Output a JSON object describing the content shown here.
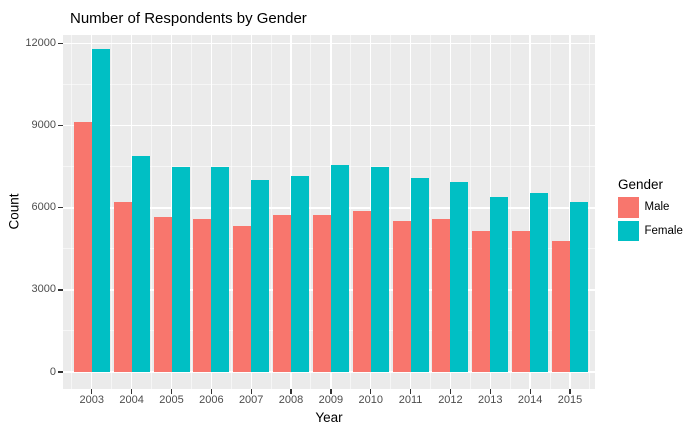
{
  "title": "Number of Respondents by Gender",
  "axes": {
    "x_title": "Year",
    "y_title": "Count",
    "y_tick_labels": [
      "0",
      "3000",
      "6000",
      "9000",
      "12000"
    ],
    "x_tick_labels": [
      "2003",
      "2004",
      "2005",
      "2006",
      "2007",
      "2008",
      "2009",
      "2010",
      "2011",
      "2012",
      "2013",
      "2014",
      "2015"
    ]
  },
  "legend": {
    "title": "Gender",
    "items": [
      {
        "label": "Male",
        "color": "#F8766D"
      },
      {
        "label": "Female",
        "color": "#00BFC4"
      }
    ]
  },
  "colors": {
    "panel_background": "#EBEBEB",
    "grid_major": "#FFFFFF",
    "axis_tick_text": "#4D4D4D",
    "tick_mark": "#333333",
    "male": "#F8766D",
    "female": "#00BFC4"
  },
  "chart_data": {
    "type": "bar",
    "title": "Number of Respondents by Gender",
    "xlabel": "Year",
    "ylabel": "Count",
    "categories": [
      "2003",
      "2004",
      "2005",
      "2006",
      "2007",
      "2008",
      "2009",
      "2010",
      "2011",
      "2012",
      "2013",
      "2014",
      "2015"
    ],
    "series": [
      {
        "name": "Male",
        "color": "#F8766D",
        "values": [
          9150,
          6200,
          5650,
          5580,
          5350,
          5720,
          5720,
          5870,
          5500,
          5600,
          5150,
          5150,
          4800
        ]
      },
      {
        "name": "Female",
        "color": "#00BFC4",
        "values": [
          11800,
          7900,
          7500,
          7500,
          7000,
          7150,
          7550,
          7500,
          7100,
          6950,
          6400,
          6550,
          6200
        ]
      }
    ],
    "ylim": [
      0,
      12400
    ],
    "y_major_ticks": [
      0,
      3000,
      6000,
      9000,
      12000
    ],
    "y_minor_ticks": [
      1500,
      4500,
      7500,
      10500
    ],
    "grid": true,
    "legend_position": "right",
    "legend_title": "Gender"
  }
}
